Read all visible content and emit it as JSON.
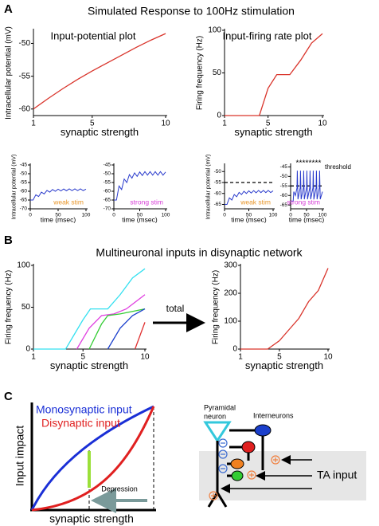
{
  "panels": [
    {
      "label": "A",
      "title": "Simulated Response to 100Hz stimulation"
    },
    {
      "label": "B",
      "title": "Multineuronal inputs in disynaptic network",
      "arrow_label": "total"
    },
    {
      "label": "C"
    }
  ],
  "chart_data": [
    {
      "type": "line",
      "title": "Input-potential plot",
      "xlabel": "synaptic strength",
      "ylabel": "Intracellular potential (mV)",
      "x": [
        1,
        2,
        3,
        4,
        5,
        6,
        7,
        8,
        9,
        10
      ],
      "series": [
        {
          "color": "#d9342b",
          "values": [
            -60,
            -58.4,
            -56.9,
            -55.5,
            -54.2,
            -53.0,
            -51.8,
            -50.6,
            -49.5,
            -48.5
          ]
        }
      ],
      "xlim": [
        1,
        10
      ],
      "xticks": [
        1,
        5,
        10
      ],
      "ylim": [
        -61,
        -48
      ],
      "yticks": [
        -60,
        -55,
        -50
      ]
    },
    {
      "type": "line",
      "title": "Input-firing rate plot",
      "xlabel": "synaptic strength",
      "ylabel": "Firing frequency (Hz)",
      "x": [
        1,
        4.2,
        5,
        5.8,
        7,
        8,
        9,
        10
      ],
      "series": [
        {
          "color": "#d9342b",
          "values": [
            0,
            0,
            32,
            48,
            48,
            65,
            85,
            96
          ]
        }
      ],
      "xlim": [
        1,
        10
      ],
      "xticks": [
        1,
        5,
        10
      ],
      "ylim": [
        0,
        100
      ],
      "yticks": [
        0,
        50,
        100
      ]
    },
    {
      "type": "line",
      "xlabel": "time (msec)",
      "ylabel": "Intracellular potential (mV)",
      "annotation": {
        "text": "weak stim",
        "color": "#e8962a"
      },
      "x": [
        0,
        5,
        10,
        15,
        20,
        25,
        30,
        35,
        40,
        45,
        50,
        55,
        60,
        65,
        70,
        75,
        80,
        85,
        90,
        95,
        100
      ],
      "series": [
        {
          "color": "#2a3bcc",
          "values": [
            -65,
            -65,
            -62,
            -63,
            -60.5,
            -61.5,
            -59.5,
            -60.5,
            -59,
            -60,
            -58.8,
            -59.8,
            -58.7,
            -59.7,
            -58.6,
            -59.6,
            -58.6,
            -59.6,
            -58.6,
            -59.6,
            -58.8
          ]
        }
      ],
      "xlim": [
        0,
        100
      ],
      "xticks": [
        0,
        50,
        100
      ],
      "ylim": [
        -70,
        -45
      ],
      "yticks": [
        -70,
        -65,
        -60,
        -55,
        -50,
        -45
      ]
    },
    {
      "type": "line",
      "xlabel": "time (msec)",
      "annotation": {
        "text": "strong stim",
        "color": "#d63cd6"
      },
      "x": [
        0,
        5,
        10,
        15,
        20,
        25,
        30,
        35,
        40,
        45,
        50,
        55,
        60,
        65,
        70,
        75,
        80,
        85,
        90,
        95,
        100
      ],
      "series": [
        {
          "color": "#2a3bcc",
          "values": [
            -65,
            -65,
            -57,
            -59,
            -53,
            -55,
            -50.5,
            -52.5,
            -49.5,
            -51.5,
            -49,
            -51,
            -48.8,
            -50.8,
            -48.8,
            -50.8,
            -48.8,
            -50.8,
            -48.8,
            -50.8,
            -49
          ]
        }
      ],
      "xlim": [
        0,
        100
      ],
      "xticks": [
        0,
        50,
        100
      ],
      "ylim": [
        -70,
        -45
      ],
      "yticks": [
        -70,
        -65,
        -60,
        -55,
        -50,
        -45
      ]
    },
    {
      "type": "line",
      "xlabel": "time (msec)",
      "ylabel": "Intracellular potential (mV)",
      "annotation": {
        "text": "weak stim",
        "color": "#e8962a"
      },
      "threshold": {
        "value": -55
      },
      "x": [
        0,
        5,
        10,
        15,
        20,
        25,
        30,
        35,
        40,
        45,
        50,
        55,
        60,
        65,
        70,
        75,
        80,
        85,
        90,
        95,
        100
      ],
      "series": [
        {
          "color": "#2a3bcc",
          "values": [
            -65,
            -65,
            -62,
            -63,
            -60.5,
            -61.5,
            -59.5,
            -60.5,
            -59,
            -60,
            -58.8,
            -59.8,
            -58.7,
            -59.7,
            -58.6,
            -59.6,
            -58.6,
            -59.6,
            -58.6,
            -59.6,
            -58.8
          ]
        }
      ],
      "xlim": [
        0,
        100
      ],
      "xticks": [
        0,
        50,
        100
      ],
      "ylim": [
        -67,
        -47
      ],
      "yticks": [
        -65,
        -60,
        -55,
        -50
      ]
    },
    {
      "type": "line",
      "xlabel": "time (msec)",
      "annotation": {
        "text": "strong stim",
        "color": "#d63cd6"
      },
      "threshold": {
        "value": -55,
        "label": "threshold"
      },
      "spike_marker": "*",
      "x": [
        0,
        8,
        10,
        15,
        20,
        21,
        23,
        30,
        31,
        33,
        40,
        41,
        43,
        50,
        51,
        53,
        60,
        61,
        63,
        70,
        71,
        73,
        80,
        81,
        83,
        90,
        91,
        93,
        100
      ],
      "series": [
        {
          "color": "#2a3bcc",
          "values": [
            -63,
            -63,
            -58,
            -60,
            -56,
            -47,
            -62,
            -56,
            -47,
            -62,
            -56,
            -47,
            -62,
            -56,
            -47,
            -62,
            -56,
            -47,
            -62,
            -56,
            -47,
            -62,
            -56,
            -47,
            -62,
            -56,
            -47,
            -62,
            -58
          ]
        }
      ],
      "xlim": [
        0,
        100
      ],
      "xticks": [
        0,
        50,
        100
      ],
      "ylim": [
        -67,
        -44
      ],
      "yticks": [
        -65,
        -60,
        -55,
        -50,
        -45
      ]
    },
    {
      "type": "line",
      "xlabel": "synaptic strength",
      "ylabel": "Firing frequency (Hz)",
      "series": [
        {
          "color": "#33e0f0",
          "x": [
            1,
            3.6,
            5,
            5.6,
            7,
            8,
            9,
            10
          ],
          "values": [
            0,
            0,
            35,
            48,
            48,
            65,
            85,
            96
          ]
        },
        {
          "color": "#e040e0",
          "x": [
            4.5,
            5.5,
            6.5,
            7.5,
            8.5,
            10
          ],
          "values": [
            0,
            25,
            40,
            42,
            48,
            65
          ]
        },
        {
          "color": "#33cc33",
          "x": [
            5.5,
            6.5,
            7,
            8,
            10
          ],
          "values": [
            0,
            30,
            40,
            42,
            48
          ]
        },
        {
          "color": "#1a3fcc",
          "x": [
            7,
            8,
            9,
            10
          ],
          "values": [
            0,
            25,
            40,
            48
          ]
        },
        {
          "color": "#e03030",
          "x": [
            9.2,
            10
          ],
          "values": [
            0,
            32
          ]
        }
      ],
      "xlim": [
        1,
        10
      ],
      "xticks": [
        1,
        5,
        10
      ],
      "ylim": [
        0,
        100
      ],
      "yticks": [
        0,
        50,
        100
      ]
    },
    {
      "type": "line",
      "xlabel": "synaptic strength",
      "ylabel": "Firing frequency (Hz)",
      "x": [
        1,
        3.8,
        5,
        6,
        7,
        8,
        9,
        10
      ],
      "series": [
        {
          "color": "#d9342b",
          "values": [
            0,
            0,
            30,
            70,
            110,
            170,
            210,
            290
          ]
        }
      ],
      "xlim": [
        1,
        10
      ],
      "xticks": [
        1,
        5,
        10
      ],
      "ylim": [
        0,
        300
      ],
      "yticks": [
        0,
        100,
        200,
        300
      ]
    }
  ],
  "diagram": {
    "curves": {
      "ylabel": "Input impact",
      "xlabel": "synaptic strength",
      "monosynaptic": "Monosynaptic input",
      "disynaptic": "Disynaptic input",
      "depression": "Depression"
    },
    "circuit": {
      "pyramidal": [
        "Pyramidal",
        "neuron"
      ],
      "interneurons": "Interneurons",
      "input": "TA input"
    }
  }
}
